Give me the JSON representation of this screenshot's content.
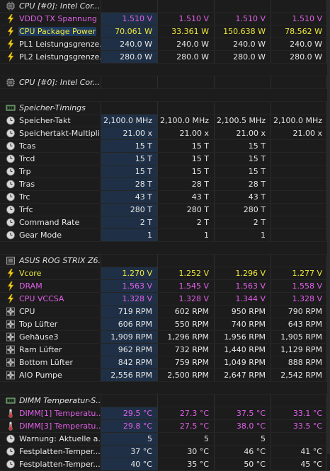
{
  "colors": {
    "white": "#e6e6e6",
    "magenta": "#e060e8",
    "yellow": "#f0ea3a",
    "selected_bg": "#1f3a60"
  },
  "rows": [
    {
      "type": "header",
      "icon": "cpu-chip-icon",
      "label": "CPU [#0]: Intel Cor...",
      "values": [
        "",
        "",
        "",
        ""
      ],
      "color": "white"
    },
    {
      "type": "data",
      "icon": "voltage-bolt-icon",
      "label": "VDDQ TX Spannung",
      "values": [
        "1.510 V",
        "1.510 V",
        "1.510 V",
        "1.510 V"
      ],
      "color": "magenta"
    },
    {
      "type": "data",
      "icon": "voltage-bolt-icon",
      "label": "CPU Package Power",
      "values": [
        "70.061 W",
        "33.361 W",
        "150.638 W",
        "78.562 W"
      ],
      "color": "yellow",
      "selected": true
    },
    {
      "type": "data",
      "icon": "voltage-bolt-icon",
      "label": "PL1 Leistungsgrenze...",
      "values": [
        "240.0 W",
        "240.0 W",
        "240.0 W",
        "240.0 W"
      ],
      "color": "white"
    },
    {
      "type": "data",
      "icon": "voltage-bolt-icon",
      "label": "PL2 Leistungsgrenze...",
      "values": [
        "280.0 W",
        "280.0 W",
        "280.0 W",
        "280.0 W"
      ],
      "color": "white"
    },
    {
      "type": "empty"
    },
    {
      "type": "header",
      "icon": "cpu-chip-icon",
      "label": "CPU [#0]: Intel Cor...",
      "values": [
        "",
        "",
        "",
        ""
      ],
      "color": "white"
    },
    {
      "type": "empty"
    },
    {
      "type": "header",
      "icon": "memory-chip-icon",
      "label": "Speicher-Timings",
      "values": [
        "",
        "",
        "",
        ""
      ],
      "color": "white"
    },
    {
      "type": "data",
      "icon": "clock-icon",
      "label": "Speicher-Takt",
      "values": [
        "2,100.0 MHz",
        "2,100.0 MHz",
        "2,100.5 MHz",
        "2,100.0 MHz"
      ],
      "color": "white"
    },
    {
      "type": "data",
      "icon": "clock-icon",
      "label": "Speichertakt-Multipli...",
      "values": [
        "21.00 x",
        "21.00 x",
        "21.00 x",
        "21.00 x"
      ],
      "color": "white"
    },
    {
      "type": "data",
      "icon": "clock-icon",
      "label": "Tcas",
      "values": [
        "15 T",
        "15 T",
        "15 T",
        ""
      ],
      "color": "white"
    },
    {
      "type": "data",
      "icon": "clock-icon",
      "label": "Trcd",
      "values": [
        "15 T",
        "15 T",
        "15 T",
        ""
      ],
      "color": "white"
    },
    {
      "type": "data",
      "icon": "clock-icon",
      "label": "Trp",
      "values": [
        "15 T",
        "15 T",
        "15 T",
        ""
      ],
      "color": "white"
    },
    {
      "type": "data",
      "icon": "clock-icon",
      "label": "Tras",
      "values": [
        "28 T",
        "28 T",
        "28 T",
        ""
      ],
      "color": "white"
    },
    {
      "type": "data",
      "icon": "clock-icon",
      "label": "Trc",
      "values": [
        "43 T",
        "43 T",
        "43 T",
        ""
      ],
      "color": "white"
    },
    {
      "type": "data",
      "icon": "clock-icon",
      "label": "Trfc",
      "values": [
        "280 T",
        "280 T",
        "280 T",
        ""
      ],
      "color": "white"
    },
    {
      "type": "data",
      "icon": "clock-icon",
      "label": "Command Rate",
      "values": [
        "2 T",
        "2 T",
        "2 T",
        ""
      ],
      "color": "white"
    },
    {
      "type": "data",
      "icon": "clock-icon",
      "label": "Gear Mode",
      "values": [
        "1",
        "1",
        "1",
        ""
      ],
      "color": "white"
    },
    {
      "type": "empty"
    },
    {
      "type": "header",
      "icon": "motherboard-chip-icon",
      "label": "ASUS ROG STRIX Z6...",
      "values": [
        "",
        "",
        "",
        ""
      ],
      "color": "white"
    },
    {
      "type": "data",
      "icon": "voltage-bolt-icon",
      "label": "Vcore",
      "values": [
        "1.270 V",
        "1.252 V",
        "1.296 V",
        "1.277 V"
      ],
      "color": "yellow"
    },
    {
      "type": "data",
      "icon": "voltage-bolt-icon",
      "label": "DRAM",
      "values": [
        "1.563 V",
        "1.545 V",
        "1.563 V",
        "1.558 V"
      ],
      "color": "magenta"
    },
    {
      "type": "data",
      "icon": "voltage-bolt-icon",
      "label": "CPU VCCSA",
      "values": [
        "1.328 V",
        "1.328 V",
        "1.344 V",
        "1.328 V"
      ],
      "color": "magenta"
    },
    {
      "type": "data",
      "icon": "fan-icon",
      "label": "CPU",
      "values": [
        "719 RPM",
        "602 RPM",
        "950 RPM",
        "790 RPM"
      ],
      "color": "white"
    },
    {
      "type": "data",
      "icon": "fan-icon",
      "label": "Top Lüfter",
      "values": [
        "606 RPM",
        "550 RPM",
        "740 RPM",
        "643 RPM"
      ],
      "color": "white"
    },
    {
      "type": "data",
      "icon": "fan-icon",
      "label": "Gehäuse3",
      "values": [
        "1,909 RPM",
        "1,296 RPM",
        "1,956 RPM",
        "1,905 RPM"
      ],
      "color": "white"
    },
    {
      "type": "data",
      "icon": "fan-icon",
      "label": "Ram Lüfter",
      "values": [
        "962 RPM",
        "732 RPM",
        "1,440 RPM",
        "1,129 RPM"
      ],
      "color": "white"
    },
    {
      "type": "data",
      "icon": "fan-icon",
      "label": "Bottom Lüfter",
      "values": [
        "842 RPM",
        "759 RPM",
        "1,049 RPM",
        "888 RPM"
      ],
      "color": "white"
    },
    {
      "type": "data",
      "icon": "fan-icon",
      "label": "AIO Pumpe",
      "values": [
        "2,556 RPM",
        "2,500 RPM",
        "2,647 RPM",
        "2,542 RPM"
      ],
      "color": "white"
    },
    {
      "type": "empty"
    },
    {
      "type": "header",
      "icon": "memory-chip-icon",
      "label": "DIMM Temperatur-S...",
      "values": [
        "",
        "",
        "",
        ""
      ],
      "color": "white"
    },
    {
      "type": "data",
      "icon": "thermometer-icon",
      "label": "DIMM[1] Temperatu...",
      "values": [
        "29.5 °C",
        "27.3 °C",
        "37.5 °C",
        "33.1 °C"
      ],
      "color": "magenta"
    },
    {
      "type": "data",
      "icon": "thermometer-icon",
      "label": "DIMM[3] Temperatu...",
      "values": [
        "29.8 °C",
        "27.5 °C",
        "38.0 °C",
        "33.5 °C"
      ],
      "color": "magenta"
    },
    {
      "type": "data",
      "icon": "clock-icon",
      "label": "Warnung: Aktuelle a...",
      "values": [
        "5",
        "5",
        "5",
        ""
      ],
      "color": "white"
    },
    {
      "type": "data",
      "icon": "clock-icon",
      "label": "Festplatten-Temper...",
      "values": [
        "37 °C",
        "30 °C",
        "46 °C",
        "41 °C"
      ],
      "color": "white"
    },
    {
      "type": "data",
      "icon": "clock-icon",
      "label": "Festplatten-Temper...",
      "values": [
        "40 °C",
        "35 °C",
        "50 °C",
        "45 °C"
      ],
      "color": "white"
    }
  ]
}
